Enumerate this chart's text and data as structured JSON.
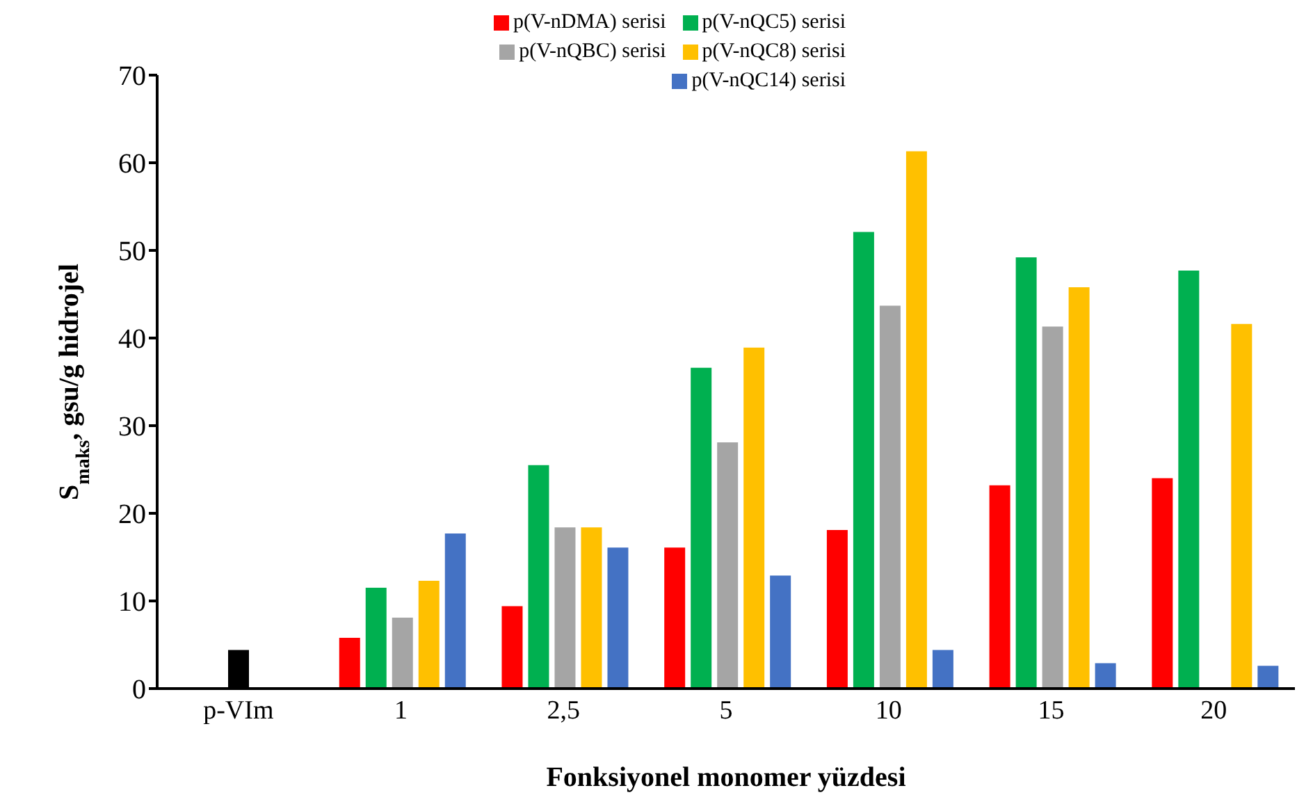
{
  "chart_data": {
    "type": "bar",
    "xlabel": "Fonksiyonel monomer yüzdesi",
    "ylabel": "S$_{maks}$, gsu/g hidrojel",
    "categories": [
      "p-VIm",
      "1",
      "2,5",
      "5",
      "10",
      "15",
      "20"
    ],
    "ylim": [
      0,
      70
    ],
    "yticks": [
      0,
      10,
      20,
      30,
      40,
      50,
      60,
      70
    ],
    "legend": "top",
    "series": [
      {
        "name": "p(V-nDMA) serisi",
        "color": "#ff0000",
        "values": [
          null,
          5.8,
          9.4,
          16.1,
          18.1,
          23.2,
          24.0
        ]
      },
      {
        "name": "p(V-nQC5) serisi",
        "color": "#00b050",
        "values": [
          null,
          11.5,
          25.5,
          36.6,
          52.1,
          49.2,
          47.7
        ]
      },
      {
        "name": "p(V-nQBC) serisi",
        "color": "#a5a5a5",
        "values": [
          null,
          8.1,
          18.4,
          28.1,
          43.7,
          41.3,
          null
        ]
      },
      {
        "name": "p(V-nQC8) serisi",
        "color": "#ffc000",
        "values": [
          null,
          12.3,
          18.4,
          38.9,
          61.3,
          45.8,
          41.6
        ]
      },
      {
        "name": "p(V-nQC14) serisi",
        "color": "#4472c4",
        "values": [
          null,
          17.7,
          16.1,
          12.9,
          4.4,
          2.9,
          2.6
        ]
      },
      {
        "color": "#000000",
        "values": [
          4.4,
          null,
          null,
          null,
          null,
          null,
          null
        ]
      }
    ]
  }
}
